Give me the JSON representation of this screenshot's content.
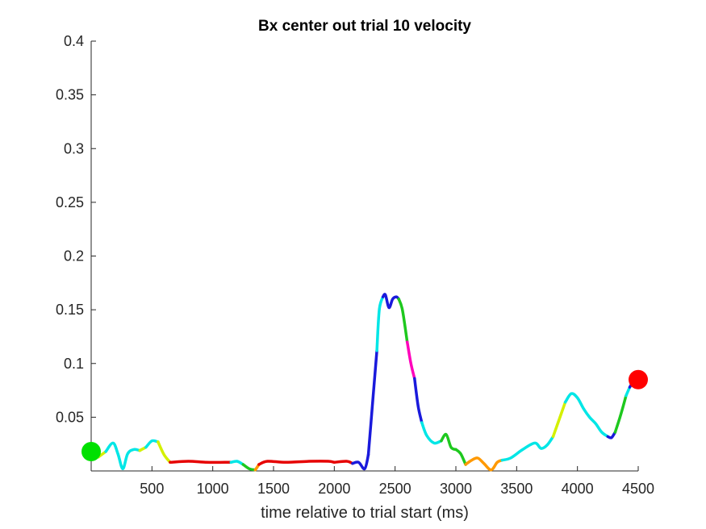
{
  "chart_data": {
    "type": "line",
    "title": "Bx  center out trial 10 velocity",
    "xlabel": "time relative to trial start (ms)",
    "ylabel": "",
    "xlim": [
      0,
      4500
    ],
    "ylim": [
      0,
      0.4
    ],
    "xticks": [
      500,
      1000,
      1500,
      2000,
      2500,
      3000,
      3500,
      4000,
      4500
    ],
    "yticks": [
      0.05,
      0.1,
      0.15,
      0.2,
      0.25,
      0.3,
      0.35,
      0.4
    ],
    "xtick_labels": [
      "500",
      "1000",
      "1500",
      "2000",
      "2500",
      "3000",
      "3500",
      "4000",
      "4500"
    ],
    "ytick_labels": [
      "0.05",
      "0.1",
      "0.15",
      "0.2",
      "0.25",
      "0.3",
      "0.35",
      "0.4"
    ],
    "grid": false,
    "legend": "none",
    "segments": [
      {
        "color": "#00e6e6",
        "x": [
          0,
          60
        ],
        "y": [
          0.018,
          0.013
        ]
      },
      {
        "color": "#d4f000",
        "x": [
          60,
          120
        ],
        "y": [
          0.013,
          0.018
        ]
      },
      {
        "color": "#00e6e6",
        "x": [
          120,
          180,
          220,
          260,
          300,
          350,
          400
        ],
        "y": [
          0.018,
          0.026,
          0.016,
          0.002,
          0.016,
          0.02,
          0.019
        ]
      },
      {
        "color": "#d4f000",
        "x": [
          400,
          450
        ],
        "y": [
          0.019,
          0.022
        ]
      },
      {
        "color": "#00e6e6",
        "x": [
          450,
          500,
          550
        ],
        "y": [
          0.022,
          0.028,
          0.027
        ]
      },
      {
        "color": "#d4f000",
        "x": [
          550,
          600,
          650
        ],
        "y": [
          0.027,
          0.015,
          0.008
        ]
      },
      {
        "color": "#e60000",
        "x": [
          650,
          800,
          950,
          1100,
          1150
        ],
        "y": [
          0.008,
          0.009,
          0.008,
          0.008,
          0.008
        ]
      },
      {
        "color": "#00e6e6",
        "x": [
          1150,
          1200,
          1250
        ],
        "y": [
          0.008,
          0.009,
          0.006
        ]
      },
      {
        "color": "#1ec81e",
        "x": [
          1250,
          1300,
          1350
        ],
        "y": [
          0.006,
          0.002,
          0.001
        ]
      },
      {
        "color": "#ff9900",
        "x": [
          1350,
          1380
        ],
        "y": [
          0.001,
          0.006
        ]
      },
      {
        "color": "#e60000",
        "x": [
          1380,
          1450,
          1600,
          1800,
          1950,
          2000
        ],
        "y": [
          0.006,
          0.009,
          0.008,
          0.009,
          0.009,
          0.008
        ]
      },
      {
        "color": "#e60000",
        "x": [
          2000,
          2100,
          2150
        ],
        "y": [
          0.008,
          0.009,
          0.007
        ]
      },
      {
        "color": "#1a1adc",
        "x": [
          2150,
          2200,
          2250,
          2280
        ],
        "y": [
          0.007,
          0.008,
          0.002,
          0.015
        ]
      },
      {
        "color": "#1a1adc",
        "x": [
          2280,
          2320,
          2350
        ],
        "y": [
          0.015,
          0.07,
          0.112
        ]
      },
      {
        "color": "#00e6e6",
        "x": [
          2350,
          2370,
          2400
        ],
        "y": [
          0.112,
          0.15,
          0.162
        ]
      },
      {
        "color": "#1a1adc",
        "x": [
          2400,
          2420,
          2450,
          2480,
          2510,
          2530
        ],
        "y": [
          0.162,
          0.164,
          0.152,
          0.16,
          0.162,
          0.16
        ]
      },
      {
        "color": "#1ec81e",
        "x": [
          2530,
          2560,
          2600
        ],
        "y": [
          0.16,
          0.15,
          0.12
        ]
      },
      {
        "color": "#ff00bb",
        "x": [
          2600,
          2630,
          2660
        ],
        "y": [
          0.12,
          0.1,
          0.086
        ]
      },
      {
        "color": "#1a1adc",
        "x": [
          2660,
          2690,
          2720
        ],
        "y": [
          0.086,
          0.06,
          0.045
        ]
      },
      {
        "color": "#00e6e6",
        "x": [
          2720,
          2760,
          2820,
          2880
        ],
        "y": [
          0.045,
          0.033,
          0.026,
          0.028
        ]
      },
      {
        "color": "#1ec81e",
        "x": [
          2880,
          2920,
          2960,
          3000
        ],
        "y": [
          0.028,
          0.034,
          0.022,
          0.02
        ]
      },
      {
        "color": "#1ec81e",
        "x": [
          3000,
          3040,
          3080
        ],
        "y": [
          0.02,
          0.016,
          0.006
        ]
      },
      {
        "color": "#ff9900",
        "x": [
          3080,
          3130,
          3180,
          3230,
          3290,
          3340,
          3380
        ],
        "y": [
          0.006,
          0.01,
          0.012,
          0.007,
          0.001,
          0.008,
          0.01
        ]
      },
      {
        "color": "#00e6e6",
        "x": [
          3380,
          3450,
          3550,
          3650,
          3700,
          3750,
          3800
        ],
        "y": [
          0.01,
          0.012,
          0.02,
          0.026,
          0.021,
          0.024,
          0.032
        ]
      },
      {
        "color": "#d4f000",
        "x": [
          3800,
          3850,
          3900
        ],
        "y": [
          0.032,
          0.048,
          0.064
        ]
      },
      {
        "color": "#00e6e6",
        "x": [
          3900,
          3950,
          4000,
          4050,
          4100,
          4150,
          4200,
          4250
        ],
        "y": [
          0.064,
          0.072,
          0.068,
          0.058,
          0.05,
          0.044,
          0.036,
          0.032
        ]
      },
      {
        "color": "#1a1adc",
        "x": [
          4250,
          4280,
          4310
        ],
        "y": [
          0.032,
          0.031,
          0.036
        ]
      },
      {
        "color": "#1ec81e",
        "x": [
          4310,
          4350,
          4400
        ],
        "y": [
          0.036,
          0.05,
          0.07
        ]
      },
      {
        "color": "#00e6e6",
        "x": [
          4400,
          4430
        ],
        "y": [
          0.07,
          0.078
        ]
      },
      {
        "color": "#1a1adc",
        "x": [
          4430,
          4460,
          4500
        ],
        "y": [
          0.078,
          0.083,
          0.085
        ]
      }
    ],
    "start_marker": {
      "x": 0,
      "y": 0.018,
      "color": "#00e000"
    },
    "end_marker": {
      "x": 4500,
      "y": 0.085,
      "color": "#ff0000"
    }
  }
}
